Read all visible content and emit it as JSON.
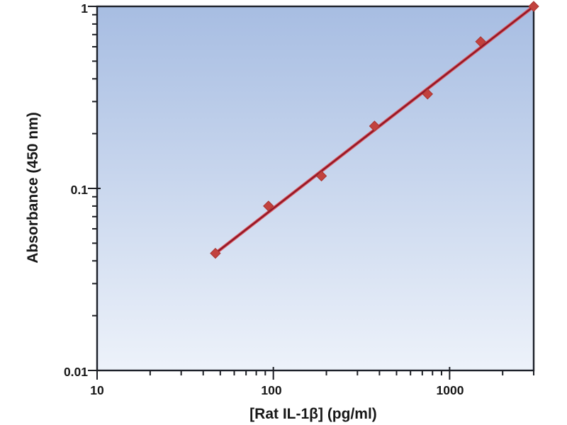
{
  "chart_data": {
    "type": "scatter",
    "title": "",
    "xlabel": "[Rat IL-1β] (pg/ml)",
    "ylabel": "Absorbance (450 nm)",
    "x_scale": "log",
    "y_scale": "log",
    "xlim": [
      10,
      3000
    ],
    "ylim": [
      0.01,
      1
    ],
    "x_tick_values": [
      10,
      100,
      1000
    ],
    "x_tick_labels": [
      "10",
      "100",
      "1000"
    ],
    "y_tick_values": [
      1,
      0.1,
      0.01
    ],
    "y_tick_labels": [
      "1",
      "0.1",
      "0.01"
    ],
    "grid": false,
    "legend": false,
    "series": [
      {
        "marker": "diamond",
        "trendline": "linear-loglog",
        "x": [
          46.9,
          93.8,
          187.5,
          375,
          750,
          1500,
          3000
        ],
        "y": [
          0.044,
          0.08,
          0.117,
          0.22,
          0.33,
          0.64,
          1.0
        ]
      }
    ],
    "colors": {
      "page_bg": "#ffffff",
      "bg_top": "#a7bde2",
      "bg_bottom": "#edf2fa",
      "border": "#1c2029",
      "tick": "#1c1e24",
      "text": "#171717",
      "marker": "#c2423e",
      "marker_edge": "#a83430",
      "line": "#8e1625",
      "line_glow": "#d9545c"
    }
  }
}
